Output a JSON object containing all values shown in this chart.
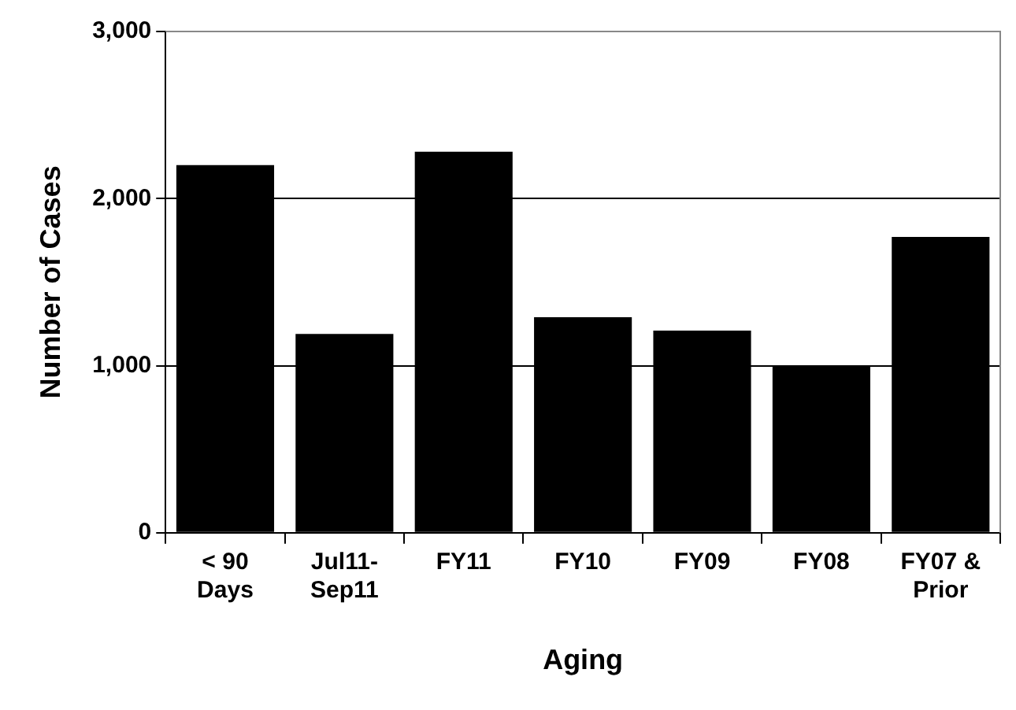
{
  "chart_data": {
    "type": "bar",
    "xlabel": "Aging",
    "ylabel": "Number of Cases",
    "categories": [
      "< 90\nDays",
      "Jul11-\nSep11",
      "FY11",
      "FY10",
      "FY09",
      "FY08",
      "FY07 &\nPrior"
    ],
    "values": [
      2200,
      1190,
      2280,
      1290,
      1210,
      1000,
      1770
    ],
    "color": "#000000",
    "ylim": [
      0,
      3000
    ],
    "yticks": [
      0,
      {
        "value": 1000,
        "label": "1,000"
      },
      {
        "value": 2000,
        "label": "2,000"
      },
      {
        "value": 3000,
        "label": "3,000"
      }
    ],
    "grid": "y",
    "legend": false
  }
}
